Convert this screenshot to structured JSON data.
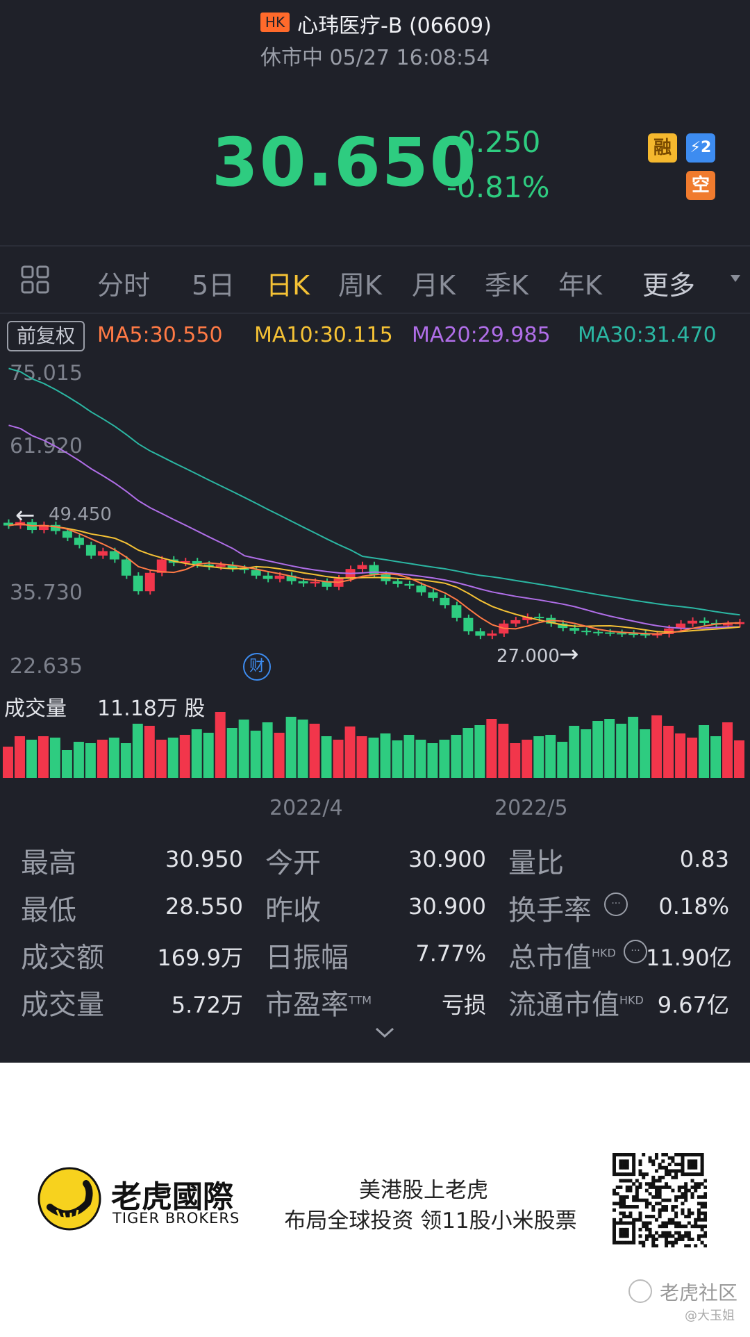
{
  "header": {
    "market_badge": "HK",
    "title": "心玮医疗-B (06609)",
    "status": "休市中 05/27 16:08:54"
  },
  "quote": {
    "price": "30.650",
    "change": "-0.250",
    "change_pct": "-0.81%",
    "badges": [
      "融",
      "⚡2",
      "空"
    ],
    "colors": {
      "down": "#2ecc80",
      "up": "#f2364b",
      "accent": "#f5c235"
    }
  },
  "tabs": {
    "grid_icon": "grid-icon",
    "items": [
      "分时",
      "5日",
      "日K",
      "周K",
      "月K",
      "季K",
      "年K",
      "更多"
    ],
    "active": "日K"
  },
  "indicator": {
    "adjust_label": "前复权",
    "ma5": "MA5:30.550",
    "ma10": "MA10:30.115",
    "ma20": "MA20:29.985",
    "ma30": "MA30:31.470"
  },
  "chart": {
    "y_labels": [
      "75.015",
      "61.920",
      "35.730",
      "22.635"
    ],
    "high_marker": "49.450",
    "low_marker": "27.000",
    "finance_marker": "财",
    "volume_label": "成交量",
    "volume_value": "11.18万 股",
    "x_labels": [
      "2022/4",
      "2022/5"
    ]
  },
  "chart_data": {
    "type": "candlestick",
    "price_range": [
      22.635,
      75.015
    ],
    "ma_lines": [
      "MA5",
      "MA10",
      "MA20",
      "MA30"
    ],
    "colors": {
      "ma5": "#ff7a45",
      "ma10": "#f5c235",
      "ma20": "#b06ee8",
      "ma30": "#2bb7a3"
    }
  },
  "stats": [
    {
      "label": "最高",
      "value": "30.950"
    },
    {
      "label": "最低",
      "value": "28.550"
    },
    {
      "label": "成交额",
      "value": "169.9万"
    },
    {
      "label": "成交量",
      "value": "5.72万"
    },
    {
      "label": "今开",
      "value": "30.900"
    },
    {
      "label": "昨收",
      "value": "30.900"
    },
    {
      "label": "日振幅",
      "value": "7.77%"
    },
    {
      "label": "市盈率",
      "value": "亏损",
      "sup": "TTM"
    },
    {
      "label": "量比",
      "value": "0.83"
    },
    {
      "label": "换手率",
      "value": "0.18%"
    },
    {
      "label": "总市值",
      "value": "11.90亿",
      "sup": "HKD"
    },
    {
      "label": "流通市值",
      "value": "9.67亿",
      "sup": "HKD"
    }
  ],
  "ad": {
    "brand_cn": "老虎國際",
    "brand_en": "TIGER BROKERS",
    "line1": "美港股上老虎",
    "line2": "布局全球投资 领11股小米股票",
    "watermark": "老虎社区",
    "author": "@大玉姐"
  }
}
